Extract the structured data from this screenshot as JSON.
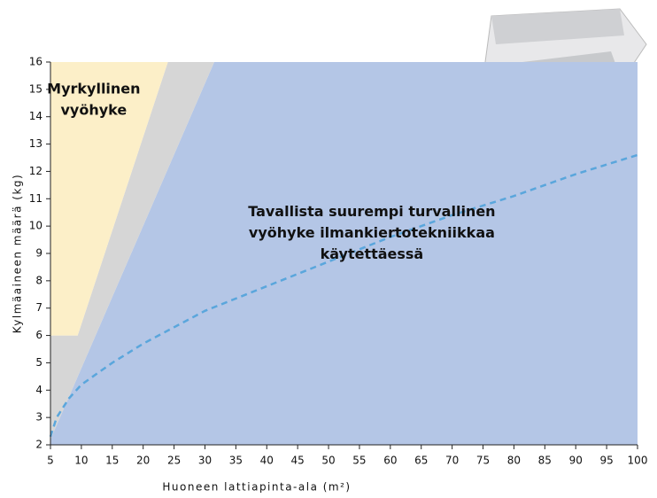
{
  "chart_data": {
    "type": "area",
    "xlabel": "Huoneen lattiapinta-ala (m²)",
    "ylabel": "Kylmäaineen määrä (kg)",
    "xlim": [
      5,
      100
    ],
    "ylim": [
      2,
      16
    ],
    "xticks": [
      5,
      10,
      15,
      20,
      25,
      30,
      35,
      40,
      45,
      50,
      55,
      60,
      65,
      70,
      75,
      80,
      85,
      90,
      95,
      100
    ],
    "yticks": [
      2,
      3,
      4,
      5,
      6,
      7,
      8,
      9,
      10,
      11,
      12,
      13,
      14,
      15,
      16
    ],
    "regions": [
      {
        "color": "#b4c6e6",
        "x": [
          5,
          100,
          100,
          31.5,
          5
        ],
        "values": [
          2,
          2,
          16,
          16,
          2.2
        ]
      },
      {
        "color": "#d6d6d6",
        "x": [
          5,
          31.5,
          24,
          9.4,
          5
        ],
        "values": [
          2.2,
          16,
          16,
          6,
          6
        ]
      },
      {
        "color": "#fcefc8",
        "x": [
          5,
          9.4,
          24,
          5
        ],
        "values": [
          6,
          6,
          16,
          16
        ]
      }
    ],
    "series": [
      {
        "color": "#5aa6dc",
        "x": [
          5,
          6,
          8,
          10,
          15,
          20,
          25,
          30,
          40,
          50,
          60,
          70,
          80,
          90,
          100
        ],
        "values": [
          2.3,
          3.0,
          3.7,
          4.2,
          5.0,
          5.7,
          6.3,
          6.9,
          7.8,
          8.7,
          9.6,
          10.4,
          11.1,
          11.9,
          12.6
        ]
      }
    ],
    "annotations": [
      {
        "lines": [
          "Myrkyllinen",
          "vyöhyke"
        ],
        "x": 12,
        "y": 15
      },
      {
        "lines": [
          "Tavallista suurempi turvallinen",
          "vyöhyke ilmankiertotekniikkaa",
          "käytettäessä"
        ],
        "x": 57,
        "y": 10.5
      }
    ]
  }
}
